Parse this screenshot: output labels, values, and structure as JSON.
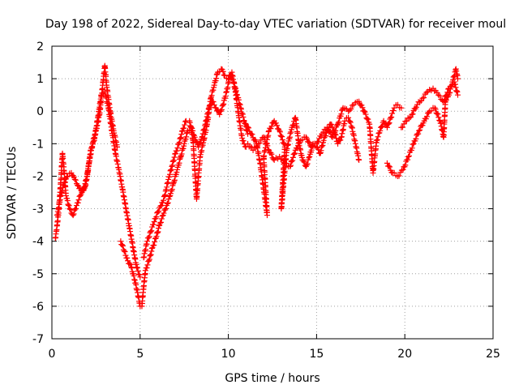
{
  "chart_data": {
    "type": "scatter",
    "title": "Day 198 of 2022, Sidereal Day-to-day VTEC variation (SDTVAR) for receiver moul",
    "xlabel": "GPS time / hours",
    "ylabel": "SDTVAR / TECUs",
    "xlim": [
      0,
      25
    ],
    "ylim": [
      -7,
      2
    ],
    "xticks": [
      0,
      5,
      10,
      15,
      20,
      25
    ],
    "yticks": [
      -7,
      -6,
      -5,
      -4,
      -3,
      -2,
      -1,
      0,
      1,
      2
    ],
    "grid": true,
    "marker": "+",
    "series": [
      {
        "name": "segment-1",
        "color": "#ff0000",
        "points": [
          [
            0.2,
            -3.9
          ],
          [
            0.3,
            -3.5
          ],
          [
            0.4,
            -3.0
          ],
          [
            0.5,
            -2.2
          ],
          [
            0.6,
            -1.3
          ],
          [
            0.7,
            -1.9
          ],
          [
            0.8,
            -2.6
          ],
          [
            1.0,
            -3.0
          ],
          [
            1.2,
            -3.2
          ],
          [
            1.4,
            -2.9
          ],
          [
            1.6,
            -2.6
          ],
          [
            1.8,
            -2.4
          ],
          [
            2.0,
            -2.0
          ],
          [
            2.2,
            -1.2
          ],
          [
            2.4,
            -0.9
          ],
          [
            2.6,
            -0.2
          ],
          [
            2.8,
            0.5
          ],
          [
            3.0,
            0.6
          ],
          [
            3.2,
            0.1
          ],
          [
            3.4,
            -0.6
          ],
          [
            3.6,
            -1.3
          ],
          [
            3.8,
            -1.8
          ],
          [
            4.0,
            -2.4
          ],
          [
            4.2,
            -3.0
          ],
          [
            4.4,
            -3.6
          ],
          [
            4.6,
            -4.2
          ],
          [
            4.8,
            -4.8
          ],
          [
            5.0,
            -5.1
          ]
        ]
      },
      {
        "name": "segment-2",
        "color": "#ff0000",
        "points": [
          [
            0.3,
            -3.2
          ],
          [
            0.5,
            -2.6
          ],
          [
            0.7,
            -2.2
          ],
          [
            0.9,
            -2.0
          ],
          [
            1.1,
            -1.9
          ],
          [
            1.3,
            -2.1
          ],
          [
            1.5,
            -2.3
          ],
          [
            1.7,
            -2.5
          ],
          [
            1.9,
            -2.3
          ],
          [
            2.1,
            -1.6
          ],
          [
            2.3,
            -1.0
          ],
          [
            2.5,
            -0.6
          ],
          [
            2.7,
            -0.1
          ],
          [
            2.9,
            0.9
          ],
          [
            3.0,
            1.4
          ],
          [
            3.1,
            0.8
          ],
          [
            3.3,
            0.0
          ],
          [
            3.5,
            -0.6
          ],
          [
            3.7,
            -1.1
          ]
        ]
      },
      {
        "name": "segment-3",
        "color": "#ff0000",
        "points": [
          [
            3.9,
            -4.0
          ],
          [
            4.1,
            -4.3
          ],
          [
            4.3,
            -4.6
          ],
          [
            4.5,
            -4.8
          ],
          [
            4.7,
            -5.2
          ],
          [
            4.9,
            -5.7
          ],
          [
            5.0,
            -6.0
          ],
          [
            5.1,
            -6.0
          ],
          [
            5.2,
            -5.4
          ],
          [
            5.3,
            -4.9
          ],
          [
            5.5,
            -4.6
          ],
          [
            5.7,
            -4.2
          ],
          [
            5.9,
            -3.9
          ],
          [
            6.1,
            -3.5
          ],
          [
            6.3,
            -3.2
          ],
          [
            6.5,
            -2.9
          ],
          [
            6.7,
            -2.6
          ],
          [
            6.9,
            -2.2
          ],
          [
            7.1,
            -1.8
          ],
          [
            7.3,
            -1.4
          ],
          [
            7.5,
            -1.0
          ],
          [
            7.7,
            -0.6
          ],
          [
            7.9,
            -0.5
          ],
          [
            8.1,
            -0.8
          ],
          [
            8.3,
            -1.1
          ],
          [
            8.5,
            -0.8
          ],
          [
            8.7,
            -0.4
          ],
          [
            8.9,
            0.1
          ],
          [
            9.1,
            0.3
          ],
          [
            9.3,
            0.1
          ],
          [
            9.5,
            -0.1
          ],
          [
            9.7,
            0.2
          ],
          [
            9.9,
            0.6
          ],
          [
            10.1,
            1.1
          ],
          [
            10.3,
            0.9
          ],
          [
            10.5,
            0.5
          ],
          [
            10.7,
            0.1
          ],
          [
            10.9,
            -0.3
          ],
          [
            11.1,
            -0.7
          ]
        ]
      },
      {
        "name": "segment-4",
        "color": "#ff0000",
        "points": [
          [
            5.2,
            -4.5
          ],
          [
            5.4,
            -4.0
          ],
          [
            5.6,
            -3.7
          ],
          [
            5.8,
            -3.4
          ],
          [
            6.0,
            -3.1
          ],
          [
            6.2,
            -2.9
          ],
          [
            6.4,
            -2.6
          ],
          [
            6.6,
            -2.1
          ],
          [
            6.8,
            -1.7
          ],
          [
            7.0,
            -1.3
          ],
          [
            7.2,
            -1.0
          ],
          [
            7.4,
            -0.6
          ],
          [
            7.6,
            -0.3
          ],
          [
            7.8,
            -0.3
          ],
          [
            8.0,
            -0.9
          ],
          [
            8.2,
            -2.7
          ],
          [
            8.4,
            -1.4
          ],
          [
            8.6,
            -0.9
          ],
          [
            8.8,
            -0.4
          ],
          [
            9.0,
            0.4
          ],
          [
            9.2,
            0.8
          ],
          [
            9.4,
            1.2
          ],
          [
            9.6,
            1.3
          ],
          [
            9.8,
            1.1
          ],
          [
            10.0,
            1.0
          ],
          [
            10.2,
            1.2
          ],
          [
            10.4,
            0.6
          ],
          [
            10.6,
            -0.2
          ],
          [
            10.8,
            -0.9
          ],
          [
            11.0,
            -1.1
          ]
        ]
      },
      {
        "name": "segment-5",
        "color": "#ff0000",
        "points": [
          [
            11.0,
            -0.4
          ],
          [
            11.3,
            -0.7
          ],
          [
            11.6,
            -1.0
          ],
          [
            11.8,
            -1.6
          ],
          [
            12.0,
            -2.4
          ],
          [
            12.2,
            -3.2
          ],
          [
            12.0,
            -1.4
          ],
          [
            12.3,
            -0.6
          ],
          [
            12.6,
            -0.3
          ],
          [
            12.9,
            -0.6
          ],
          [
            13.2,
            -1.1
          ],
          [
            13.0,
            -3.0
          ],
          [
            13.3,
            -1.2
          ],
          [
            13.6,
            -0.5
          ],
          [
            13.8,
            -0.2
          ],
          [
            14.0,
            -1.0
          ],
          [
            14.2,
            -1.5
          ],
          [
            14.4,
            -1.7
          ],
          [
            14.6,
            -1.4
          ],
          [
            14.8,
            -1.0
          ],
          [
            15.0,
            -1.1
          ],
          [
            15.2,
            -1.3
          ],
          [
            15.4,
            -0.9
          ],
          [
            15.6,
            -0.6
          ],
          [
            15.8,
            -0.4
          ],
          [
            16.0,
            -0.6
          ],
          [
            16.2,
            -1.0
          ],
          [
            16.4,
            -0.8
          ],
          [
            16.6,
            -0.3
          ],
          [
            16.8,
            -0.2
          ],
          [
            17.0,
            -0.5
          ],
          [
            17.2,
            -1.0
          ],
          [
            17.4,
            -1.5
          ]
        ]
      },
      {
        "name": "segment-6",
        "color": "#ff0000",
        "points": [
          [
            11.1,
            -1.0
          ],
          [
            11.4,
            -1.2
          ],
          [
            11.7,
            -1.0
          ],
          [
            12.0,
            -0.8
          ],
          [
            12.3,
            -1.2
          ],
          [
            12.6,
            -1.5
          ],
          [
            12.9,
            -1.4
          ],
          [
            13.2,
            -1.6
          ],
          [
            13.5,
            -1.7
          ],
          [
            13.8,
            -1.2
          ],
          [
            14.1,
            -0.9
          ],
          [
            14.4,
            -0.8
          ],
          [
            14.7,
            -1.1
          ],
          [
            15.0,
            -1.0
          ],
          [
            15.3,
            -0.7
          ],
          [
            15.6,
            -0.5
          ],
          [
            15.9,
            -0.8
          ],
          [
            16.2,
            -0.4
          ],
          [
            16.5,
            0.1
          ],
          [
            16.8,
            0.0
          ],
          [
            17.1,
            0.2
          ],
          [
            17.4,
            0.3
          ],
          [
            17.7,
            0.0
          ],
          [
            18.0,
            -0.4
          ],
          [
            18.2,
            -1.9
          ],
          [
            18.4,
            -0.9
          ],
          [
            18.6,
            -0.6
          ],
          [
            18.8,
            -0.3
          ],
          [
            19.0,
            -0.5
          ],
          [
            19.2,
            -0.2
          ],
          [
            19.4,
            0.1
          ],
          [
            19.6,
            0.2
          ],
          [
            19.8,
            0.1
          ]
        ]
      },
      {
        "name": "segment-7",
        "color": "#ff0000",
        "points": [
          [
            19.0,
            -1.6
          ],
          [
            19.3,
            -1.9
          ],
          [
            19.6,
            -2.0
          ],
          [
            19.9,
            -1.8
          ],
          [
            20.2,
            -1.4
          ],
          [
            20.5,
            -1.0
          ],
          [
            20.8,
            -0.6
          ],
          [
            21.1,
            -0.3
          ],
          [
            21.4,
            0.0
          ],
          [
            21.7,
            0.1
          ],
          [
            22.0,
            -0.3
          ],
          [
            22.2,
            -0.8
          ],
          [
            22.3,
            0.3
          ],
          [
            22.5,
            0.5
          ],
          [
            22.7,
            0.9
          ],
          [
            22.9,
            1.3
          ],
          [
            23.0,
            1.0
          ]
        ]
      },
      {
        "name": "segment-8",
        "color": "#ff0000",
        "points": [
          [
            19.8,
            -0.5
          ],
          [
            20.1,
            -0.3
          ],
          [
            20.4,
            -0.1
          ],
          [
            20.7,
            0.2
          ],
          [
            21.0,
            0.4
          ],
          [
            21.3,
            0.6
          ],
          [
            21.6,
            0.7
          ],
          [
            21.9,
            0.5
          ],
          [
            22.2,
            0.3
          ],
          [
            22.5,
            0.7
          ],
          [
            22.8,
            0.9
          ],
          [
            23.0,
            0.5
          ]
        ]
      }
    ]
  }
}
